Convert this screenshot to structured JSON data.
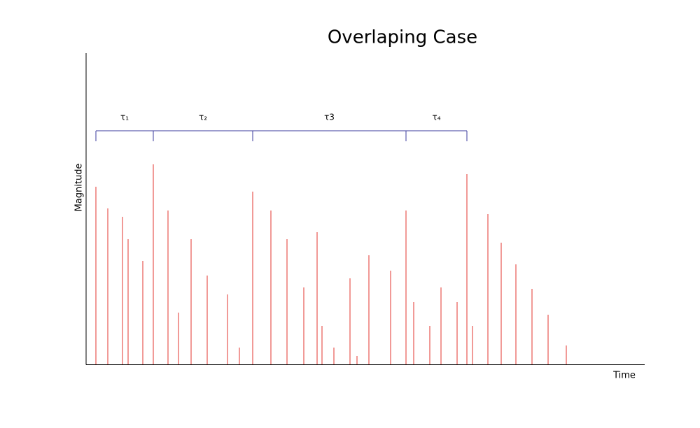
{
  "chart_data": {
    "type": "stem",
    "title": "Overlaping Case",
    "xlabel": "Time",
    "ylabel": "Magnitude",
    "x": [
      14,
      31,
      52,
      60,
      81,
      96,
      117,
      132,
      150,
      173,
      202,
      219,
      238,
      264,
      287,
      311,
      330,
      337,
      354,
      377,
      387,
      404,
      435,
      457,
      468,
      491,
      507,
      530,
      544,
      552,
      574,
      593,
      614,
      637,
      660,
      686
    ],
    "values": [
      254,
      223,
      211,
      179,
      148,
      286,
      220,
      74,
      179,
      127,
      100,
      24,
      247,
      220,
      179,
      110,
      189,
      55,
      24,
      123,
      12,
      156,
      134,
      220,
      89,
      55,
      110,
      89,
      272,
      55,
      215,
      174,
      143,
      108,
      71,
      27
    ],
    "color": "#e3342f",
    "xlim": [
      0,
      798
    ],
    "ylim": [
      0,
      445
    ],
    "annotations": [
      {
        "text": "τ₁",
        "start": 14,
        "end": 96
      },
      {
        "text": "τ₂",
        "start": 96,
        "end": 238
      },
      {
        "text": "τ3",
        "start": 238,
        "end": 457
      },
      {
        "text": "τ₄",
        "start": 457,
        "end": 544
      }
    ],
    "annotation_color": "#3b3b9c"
  }
}
